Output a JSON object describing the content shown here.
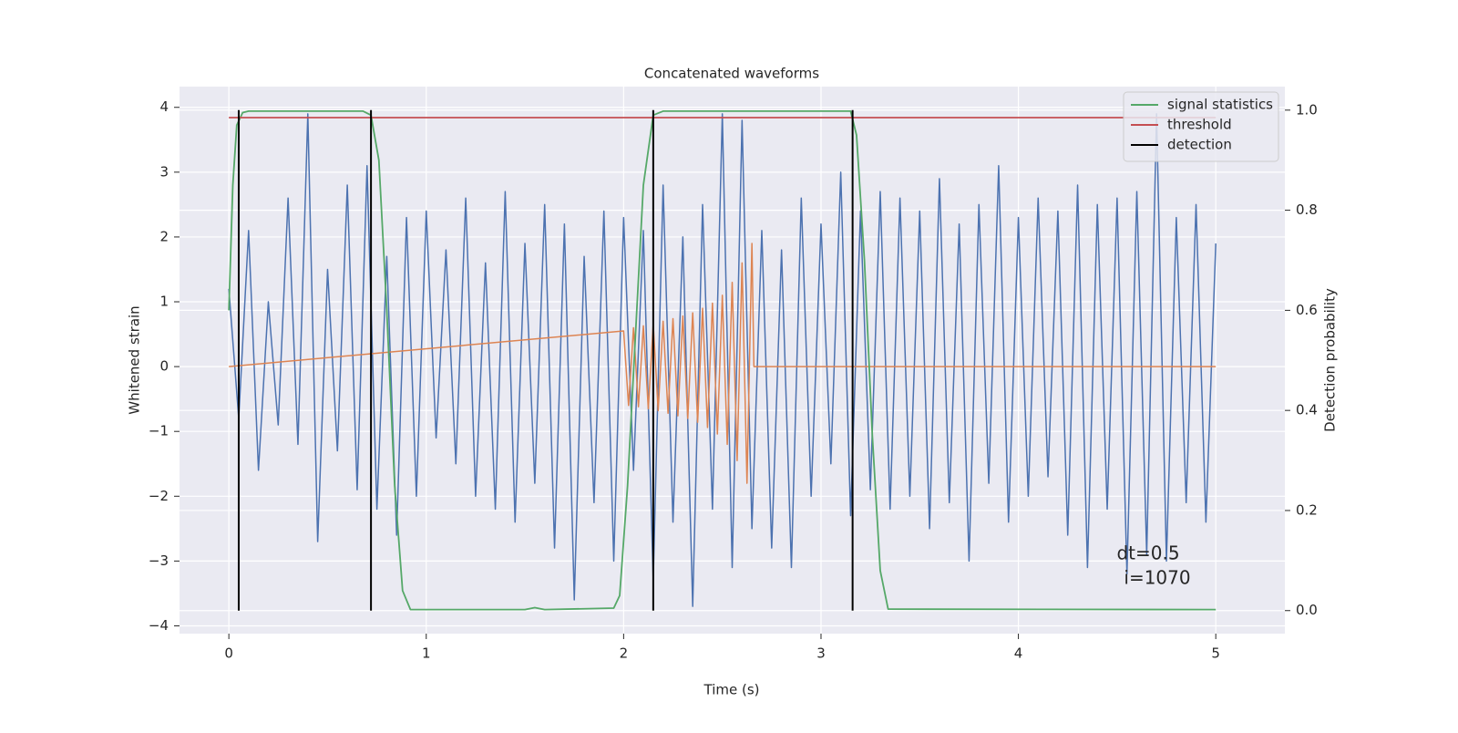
{
  "chart_data": {
    "type": "line",
    "title": "Concatenated waveforms",
    "xlabel": "Time (s)",
    "ylabel": "Whitened strain",
    "y2label": "Detection probability",
    "xlim": [
      -0.25,
      5.35
    ],
    "ylim": [
      -4.12,
      4.32
    ],
    "y2lim": [
      -0.046,
      1.047
    ],
    "xticks": [
      0,
      1,
      2,
      3,
      4,
      5
    ],
    "yticks": [
      {
        "value": -4,
        "label": "−4"
      },
      {
        "value": -3,
        "label": "−3"
      },
      {
        "value": -2,
        "label": "−2"
      },
      {
        "value": -1,
        "label": "−1"
      },
      0,
      1,
      2,
      3,
      4
    ],
    "y2ticks": [
      {
        "value": 0,
        "label": "0.0"
      },
      0.2,
      0.4,
      0.6,
      0.8,
      {
        "value": 1,
        "label": "1.0"
      }
    ],
    "grid": true,
    "legend": "upper right",
    "series": [
      {
        "color": "#4c72b0",
        "x": [
          0,
          0.05,
          0.1,
          0.15,
          0.2,
          0.25,
          0.3,
          0.35,
          0.4,
          0.45,
          0.5,
          0.55,
          0.6,
          0.65,
          0.7,
          0.75,
          0.8,
          0.85,
          0.9,
          0.95,
          1,
          1.05,
          1.1,
          1.15,
          1.2,
          1.25,
          1.3,
          1.35,
          1.4,
          1.45,
          1.5,
          1.55,
          1.6,
          1.65,
          1.7,
          1.75,
          1.8,
          1.85,
          1.9,
          1.95,
          2,
          2.05,
          2.1,
          2.15,
          2.2,
          2.25,
          2.3,
          2.35,
          2.4,
          2.45,
          2.5,
          2.55,
          2.6,
          2.65,
          2.7,
          2.75,
          2.8,
          2.85,
          2.9,
          2.95,
          3,
          3.05,
          3.1,
          3.15,
          3.2,
          3.25,
          3.3,
          3.35,
          3.4,
          3.45,
          3.5,
          3.55,
          3.6,
          3.65,
          3.7,
          3.75,
          3.8,
          3.85,
          3.9,
          3.95,
          4,
          4.05,
          4.1,
          4.15,
          4.2,
          4.25,
          4.3,
          4.35,
          4.4,
          4.45,
          4.5,
          4.55,
          4.6,
          4.65,
          4.7,
          4.75,
          4.8,
          4.85,
          4.9,
          4.95,
          5
        ],
        "values": [
          1.2,
          -0.8,
          2.1,
          -1.6,
          1.0,
          -0.9,
          2.6,
          -1.2,
          3.9,
          -2.7,
          1.5,
          -1.3,
          2.8,
          -1.9,
          3.1,
          -2.2,
          1.7,
          -2.6,
          2.3,
          -2.0,
          2.4,
          -1.1,
          1.8,
          -1.5,
          2.6,
          -2.0,
          1.6,
          -2.2,
          2.7,
          -2.4,
          1.9,
          -1.8,
          2.5,
          -2.8,
          2.2,
          -3.6,
          1.7,
          -2.1,
          2.4,
          -3.0,
          2.3,
          -1.6,
          2.1,
          -3.3,
          2.8,
          -2.4,
          2.0,
          -3.7,
          2.5,
          -2.2,
          3.9,
          -3.1,
          3.8,
          -2.5,
          2.1,
          -2.8,
          1.8,
          -3.1,
          2.6,
          -2.0,
          2.2,
          -1.5,
          3.0,
          -2.3,
          2.4,
          -1.9,
          2.7,
          -2.2,
          2.6,
          -2.0,
          2.4,
          -2.5,
          2.9,
          -2.1,
          2.2,
          -3.0,
          2.5,
          -1.8,
          3.1,
          -2.4,
          2.3,
          -2.0,
          2.6,
          -1.7,
          2.4,
          -2.6,
          2.8,
          -3.1,
          2.5,
          -2.2,
          2.6,
          -3.2,
          2.7,
          -2.9,
          3.9,
          -3.0,
          2.3,
          -2.1,
          2.5,
          -2.4,
          1.9
        ]
      },
      {
        "color": "#dd8452",
        "x": [
          0,
          2.0,
          2.025,
          2.05,
          2.075,
          2.1,
          2.125,
          2.15,
          2.175,
          2.2,
          2.225,
          2.25,
          2.275,
          2.3,
          2.325,
          2.35,
          2.375,
          2.4,
          2.425,
          2.45,
          2.475,
          2.5,
          2.525,
          2.55,
          2.575,
          2.6,
          2.625,
          2.65,
          2.66,
          5
        ],
        "values": [
          0,
          0.55,
          -0.6,
          0.6,
          -0.62,
          0.63,
          -0.65,
          0.66,
          -0.68,
          0.7,
          -0.72,
          0.74,
          -0.76,
          0.78,
          -0.8,
          0.83,
          -0.86,
          0.9,
          -0.94,
          0.98,
          -1.04,
          1.1,
          -1.2,
          1.3,
          -1.45,
          1.6,
          -1.8,
          1.9,
          0,
          0
        ]
      },
      {
        "name": "signal statistics",
        "color": "#55a868",
        "axis": "y2",
        "x": [
          0,
          0.02,
          0.04,
          0.07,
          0.1,
          0.68,
          0.72,
          0.76,
          0.8,
          0.84,
          0.88,
          0.92,
          1.5,
          1.55,
          1.6,
          1.95,
          1.98,
          2.02,
          2.06,
          2.1,
          2.15,
          2.2,
          3.15,
          3.18,
          3.22,
          3.26,
          3.3,
          3.34,
          5
        ],
        "values": [
          0.6,
          0.85,
          0.97,
          0.995,
          0.998,
          0.998,
          0.99,
          0.9,
          0.6,
          0.25,
          0.04,
          0.002,
          0.002,
          0.006,
          0.002,
          0.005,
          0.03,
          0.25,
          0.55,
          0.85,
          0.99,
          0.998,
          0.998,
          0.95,
          0.7,
          0.35,
          0.08,
          0.003,
          0.002
        ]
      },
      {
        "name": "threshold",
        "color": "#c44e52",
        "axis": "y2",
        "x": [
          0,
          5
        ],
        "values": [
          0.985,
          0.985
        ]
      }
    ],
    "vlines": {
      "name": "detection",
      "color": "#000000",
      "axis": "y2",
      "x": [
        0.05,
        0.72,
        2.15,
        3.16
      ],
      "span": [
        0,
        1
      ]
    },
    "annotations": [
      "dt=0.5",
      "i=1070"
    ]
  }
}
